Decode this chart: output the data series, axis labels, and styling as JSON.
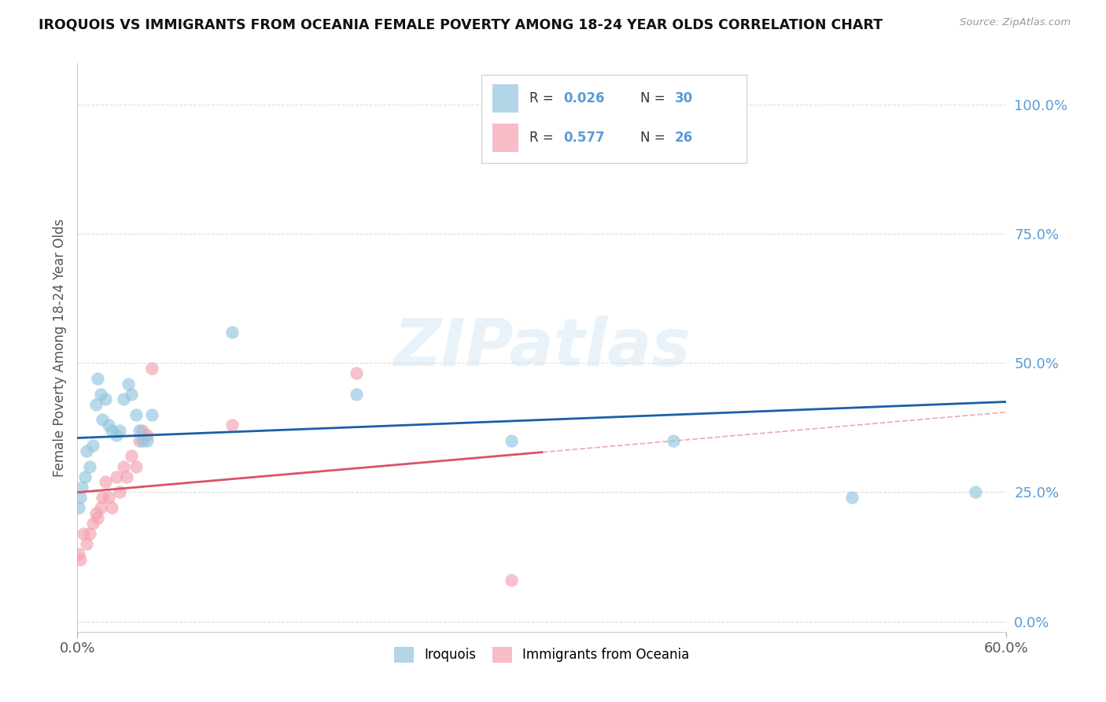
{
  "title": "IROQUOIS VS IMMIGRANTS FROM OCEANIA FEMALE POVERTY AMONG 18-24 YEAR OLDS CORRELATION CHART",
  "source": "Source: ZipAtlas.com",
  "ylabel": "Female Poverty Among 18-24 Year Olds",
  "ytick_labels": [
    "0.0%",
    "25.0%",
    "50.0%",
    "75.0%",
    "100.0%"
  ],
  "ytick_values": [
    0.0,
    0.25,
    0.5,
    0.75,
    1.0
  ],
  "xlim": [
    0.0,
    0.6
  ],
  "ylim": [
    -0.02,
    1.08
  ],
  "R_iroquois": 0.026,
  "N_iroquois": 30,
  "R_oceania": 0.577,
  "N_oceania": 26,
  "legend1_label": "Iroquois",
  "legend2_label": "Immigrants from Oceania",
  "blue_color": "#92c5de",
  "pink_color": "#f4a0b0",
  "line_blue": "#1a5fa8",
  "line_pink": "#d9546a",
  "line_diag_color": "#e8a0aa",
  "watermark": "ZIPatlas",
  "iroquois_x": [
    0.001,
    0.002,
    0.003,
    0.005,
    0.006,
    0.008,
    0.01,
    0.012,
    0.013,
    0.015,
    0.016,
    0.018,
    0.02,
    0.022,
    0.025,
    0.027,
    0.03,
    0.033,
    0.035,
    0.038,
    0.04,
    0.042,
    0.045,
    0.048,
    0.1,
    0.18,
    0.28,
    0.385,
    0.5,
    0.58
  ],
  "iroquois_y": [
    0.22,
    0.24,
    0.26,
    0.28,
    0.33,
    0.3,
    0.34,
    0.42,
    0.47,
    0.44,
    0.39,
    0.43,
    0.38,
    0.37,
    0.36,
    0.37,
    0.43,
    0.46,
    0.44,
    0.4,
    0.37,
    0.35,
    0.35,
    0.4,
    0.56,
    0.44,
    0.35,
    0.35,
    0.24,
    0.25
  ],
  "oceania_x": [
    0.001,
    0.002,
    0.004,
    0.006,
    0.008,
    0.01,
    0.012,
    0.013,
    0.015,
    0.016,
    0.018,
    0.02,
    0.022,
    0.025,
    0.027,
    0.03,
    0.032,
    0.035,
    0.038,
    0.04,
    0.042,
    0.045,
    0.048,
    0.1,
    0.18,
    0.28
  ],
  "oceania_y": [
    0.13,
    0.12,
    0.17,
    0.15,
    0.17,
    0.19,
    0.21,
    0.2,
    0.22,
    0.24,
    0.27,
    0.24,
    0.22,
    0.28,
    0.25,
    0.3,
    0.28,
    0.32,
    0.3,
    0.35,
    0.37,
    0.36,
    0.49,
    0.38,
    0.48,
    0.08
  ],
  "blue_line_y0": 0.355,
  "blue_line_y1": 0.425,
  "pink_line_x0": 0.0,
  "pink_line_y0": 0.12,
  "pink_line_x1": 0.3,
  "pink_line_y1": 0.38
}
